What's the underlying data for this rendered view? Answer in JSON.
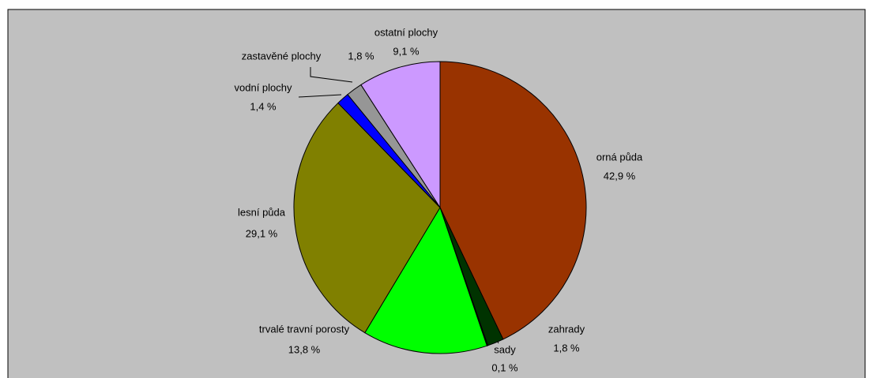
{
  "chart_data": {
    "type": "pie",
    "categories": [
      "orná půda",
      "zahrady",
      "sady",
      "trvalé travní porosty",
      "lesní půda",
      "vodní plochy",
      "zastavěné plochy",
      "ostatní plochy"
    ],
    "values": [
      42.9,
      1.8,
      0.1,
      13.8,
      29.1,
      1.4,
      1.8,
      9.1
    ],
    "value_labels": [
      "42,9 %",
      "1,8 %",
      "0,1 %",
      "13,8 %",
      "29,1 %",
      "1,4 %",
      "1,8 %",
      "9,1 %"
    ],
    "colors": [
      "#993300",
      "#003300",
      "#006600",
      "#00ff00",
      "#808000",
      "#0000ff",
      "#969696",
      "#cc99ff"
    ]
  }
}
